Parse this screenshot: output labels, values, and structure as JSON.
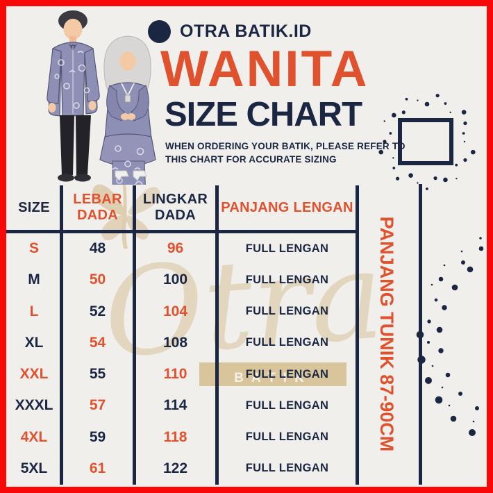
{
  "brand": {
    "name": "OTRA BATIK.ID"
  },
  "header": {
    "title": "WANITA",
    "subtitle": "SIZE CHART",
    "note_line1": "WHEN ORDERING YOUR BATIK, PLEASE REFER TO",
    "note_line2": "THIS CHART FOR ACCURATE SIZING"
  },
  "side_label": "PANJANG TUNIK 87-90CM",
  "watermark": {
    "script": "Otra",
    "band_text": "BATIK"
  },
  "colors": {
    "accent_orange": "#e0512d",
    "navy": "#1a2642",
    "border_red": "#f90808",
    "background": "#f0efec",
    "gold_watermark": "#cdae78",
    "band_tan": "#d8c59c"
  },
  "chart_data": {
    "type": "table",
    "title": "WANITA SIZE CHART",
    "columns": [
      "SIZE",
      "LEBAR DADA",
      "LINGKAR DADA",
      "PANJANG LENGAN"
    ],
    "rows": [
      [
        "S",
        48,
        96,
        "FULL LENGAN"
      ],
      [
        "M",
        50,
        100,
        "FULL LENGAN"
      ],
      [
        "L",
        52,
        104,
        "FULL LENGAN"
      ],
      [
        "XL",
        54,
        108,
        "FULL LENGAN"
      ],
      [
        "XXL",
        55,
        110,
        "FULL LENGAN"
      ],
      [
        "XXXL",
        57,
        114,
        "FULL LENGAN"
      ],
      [
        "4XL",
        59,
        118,
        "FULL LENGAN"
      ],
      [
        "5XL",
        61,
        122,
        "FULL LENGAN"
      ]
    ],
    "extra": "PANJANG TUNIK 87-90CM"
  },
  "table": {
    "columns": [
      {
        "label": "SIZE",
        "color": "navy"
      },
      {
        "label": "LEBAR DADA",
        "color": "orange"
      },
      {
        "label": "LINGKAR DADA",
        "color": "navy"
      },
      {
        "label": "PANJANG LENGAN",
        "color": "orange"
      }
    ],
    "rows": [
      {
        "size": "S",
        "lebar": "48",
        "lingkar": "96",
        "lengan": "FULL LENGAN"
      },
      {
        "size": "M",
        "lebar": "50",
        "lingkar": "100",
        "lengan": "FULL LENGAN"
      },
      {
        "size": "L",
        "lebar": "52",
        "lingkar": "104",
        "lengan": "FULL LENGAN"
      },
      {
        "size": "XL",
        "lebar": "54",
        "lingkar": "108",
        "lengan": "FULL LENGAN"
      },
      {
        "size": "XXL",
        "lebar": "55",
        "lingkar": "110",
        "lengan": "FULL LENGAN"
      },
      {
        "size": "XXXL",
        "lebar": "57",
        "lingkar": "114",
        "lengan": "FULL LENGAN"
      },
      {
        "size": "4XL",
        "lebar": "59",
        "lingkar": "118",
        "lengan": "FULL LENGAN"
      },
      {
        "size": "5XL",
        "lebar": "61",
        "lingkar": "122",
        "lengan": "FULL LENGAN"
      }
    ]
  }
}
